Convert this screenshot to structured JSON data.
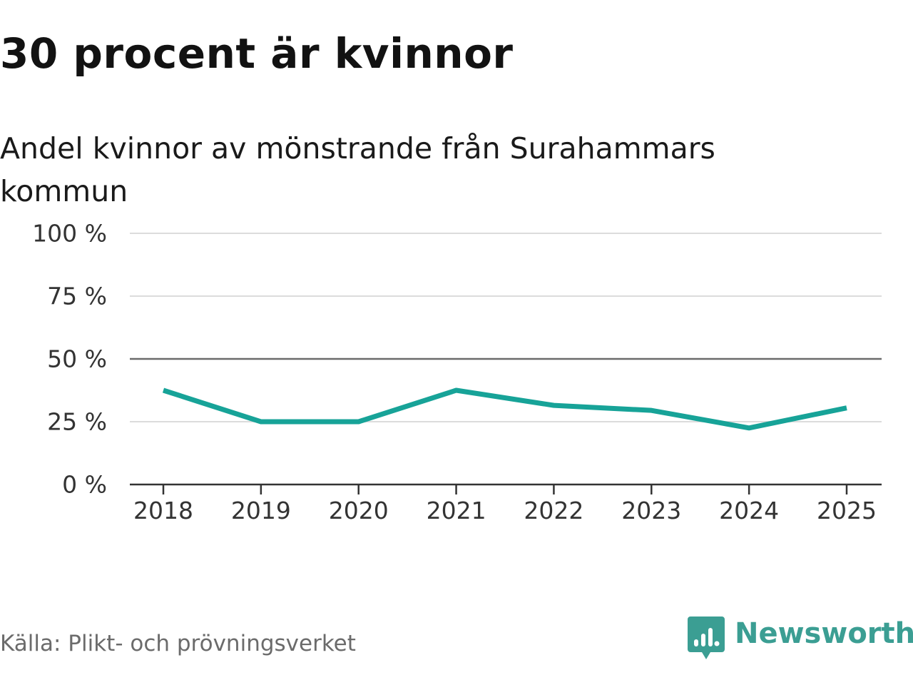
{
  "header": {
    "title": "30 procent är kvinnor",
    "subtitle": "Andel kvinnor av mönstrande från Surahammars kommun"
  },
  "footer": {
    "source": "Källa: Plikt- och prövningsverket",
    "brand": "Newsworthy",
    "brand_icon": "bar-chart-speech-bubble-icon"
  },
  "colors": {
    "line": "#17a398",
    "grid": "#dcdcdc",
    "reference_line": "#6b6b6b",
    "axis": "#333333",
    "brand": "#3b9e93"
  },
  "chart_data": {
    "type": "line",
    "title": "30 procent är kvinnor",
    "subtitle": "Andel kvinnor av mönstrande från Surahammars kommun",
    "xlabel": "",
    "ylabel": "",
    "x": [
      "2018",
      "2019",
      "2020",
      "2021",
      "2022",
      "2023",
      "2024",
      "2025"
    ],
    "series": [
      {
        "values": [
          37.5,
          25,
          25,
          37.5,
          31.5,
          29.5,
          22.5,
          30.5
        ]
      }
    ],
    "ylim": [
      0,
      100
    ],
    "yticks": [
      0,
      25,
      50,
      75,
      100
    ],
    "ytick_labels": [
      "0 %",
      "25 %",
      "50 %",
      "75 %",
      "100 %"
    ],
    "reference_line": 50,
    "grid": true,
    "legend": "none"
  }
}
